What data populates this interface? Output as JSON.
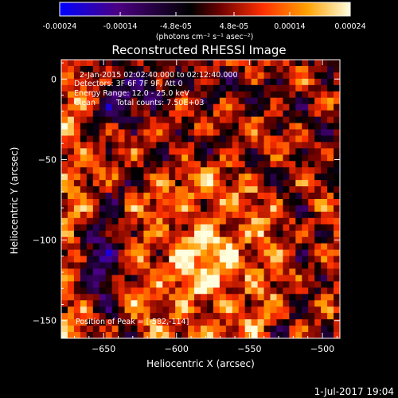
{
  "window": {
    "title": "Reconstructed RHESSI Image",
    "footer_datetime": "1-Jul-2017 19:04"
  },
  "colorbar": {
    "tick_labels": [
      "-0.00024",
      "-0.00014",
      "-4.8e-05",
      "4.8e-05",
      "0.00014",
      "0.00024"
    ],
    "tick_values": [
      -0.00024,
      -0.00014,
      -4.8e-05,
      4.8e-05,
      0.00014,
      0.00024
    ],
    "min": -0.00024,
    "max": 0.00024,
    "units_label": "(photons cm⁻² s⁻¹ asec⁻²)",
    "colors": [
      "#0000ff",
      "#4b0082",
      "#000000",
      "#8b0000",
      "#ff4500",
      "#ffa500",
      "#ffffe0"
    ]
  },
  "annotations": {
    "time_range": "2-Jan-2015 02:02:40.000 to 02:12:40.000",
    "detectors": "Detectors: 3F 6F 7F 9F, Att 0",
    "energy_range": "Energy Range: 12.0 - 25.0 keV",
    "method": "Clean",
    "total_counts": "Total counts: 7.50E+03",
    "peak_position": "Position of Peak = [-582,-114]"
  },
  "chart_data": {
    "type": "heatmap",
    "title": "Reconstructed RHESSI Image",
    "xlabel": "Heliocentric X (arcsec)",
    "ylabel": "Heliocentric Y (arcsec)",
    "xlim": [
      -679,
      -488
    ],
    "ylim": [
      -161,
      12
    ],
    "x_ticks": [
      -650,
      -600,
      -550,
      -500
    ],
    "x_tick_labels": [
      "−650",
      "−600",
      "−550",
      "−500"
    ],
    "y_ticks": [
      0,
      -50,
      -100,
      -150
    ],
    "y_tick_labels": [
      "0",
      "−50",
      "−100",
      "−150"
    ],
    "peak": [
      -582,
      -114
    ],
    "grid": false
  }
}
